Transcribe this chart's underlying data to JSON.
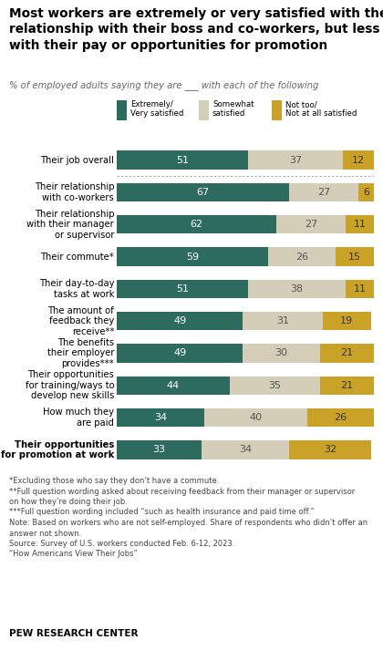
{
  "title": "Most workers are extremely or very satisfied with their\nrelationship with their boss and co-workers, but less so\nwith their pay or opportunities for promotion",
  "subtitle": "% of employed adults saying they are ___ with each of the following",
  "categories": [
    "Their job overall",
    "Their relationship\nwith co-workers",
    "Their relationship\nwith their manager\nor supervisor",
    "Their commute*",
    "Their day-to-day\ntasks at work",
    "The amount of\nfeedback they\nreceive**",
    "The benefits\ntheir employer\nprovides***",
    "Their opportunities\nfor training/ways to\ndevelop new skills",
    "How much they\nare paid",
    "Their opportunities\nfor promotion at work"
  ],
  "extremely_very": [
    51,
    67,
    62,
    59,
    51,
    49,
    49,
    44,
    34,
    33
  ],
  "somewhat": [
    37,
    27,
    27,
    26,
    38,
    31,
    30,
    35,
    40,
    34
  ],
  "not_too": [
    12,
    6,
    11,
    15,
    11,
    19,
    21,
    21,
    26,
    32
  ],
  "color_extremely": "#2d6b5e",
  "color_somewhat": "#d4cdb8",
  "color_not_too": "#c9a227",
  "legend_labels": [
    "Extremely/\nVery satisfied",
    "Somewhat\nsatisfied",
    "Not too/\nNot at all satisfied"
  ],
  "footnote_lines": [
    "*Excluding those who say they don’t have a commute.",
    "**Full question wording asked about receiving feedback from their manager or supervisor",
    "on how they’re doing their job.",
    "***Full question wording included “such as health insurance and paid time off.”",
    "Note: Based on workers who are not self-employed. Share of respondents who didn’t offer an",
    "answer not shown.",
    "Source: Survey of U.S. workers conducted Feb. 6-12, 2023.",
    "“How Americans View Their Jobs”"
  ],
  "source_label": "PEW RESEARCH CENTER",
  "fig_width": 4.2,
  "fig_height": 7.13,
  "dpi": 100
}
